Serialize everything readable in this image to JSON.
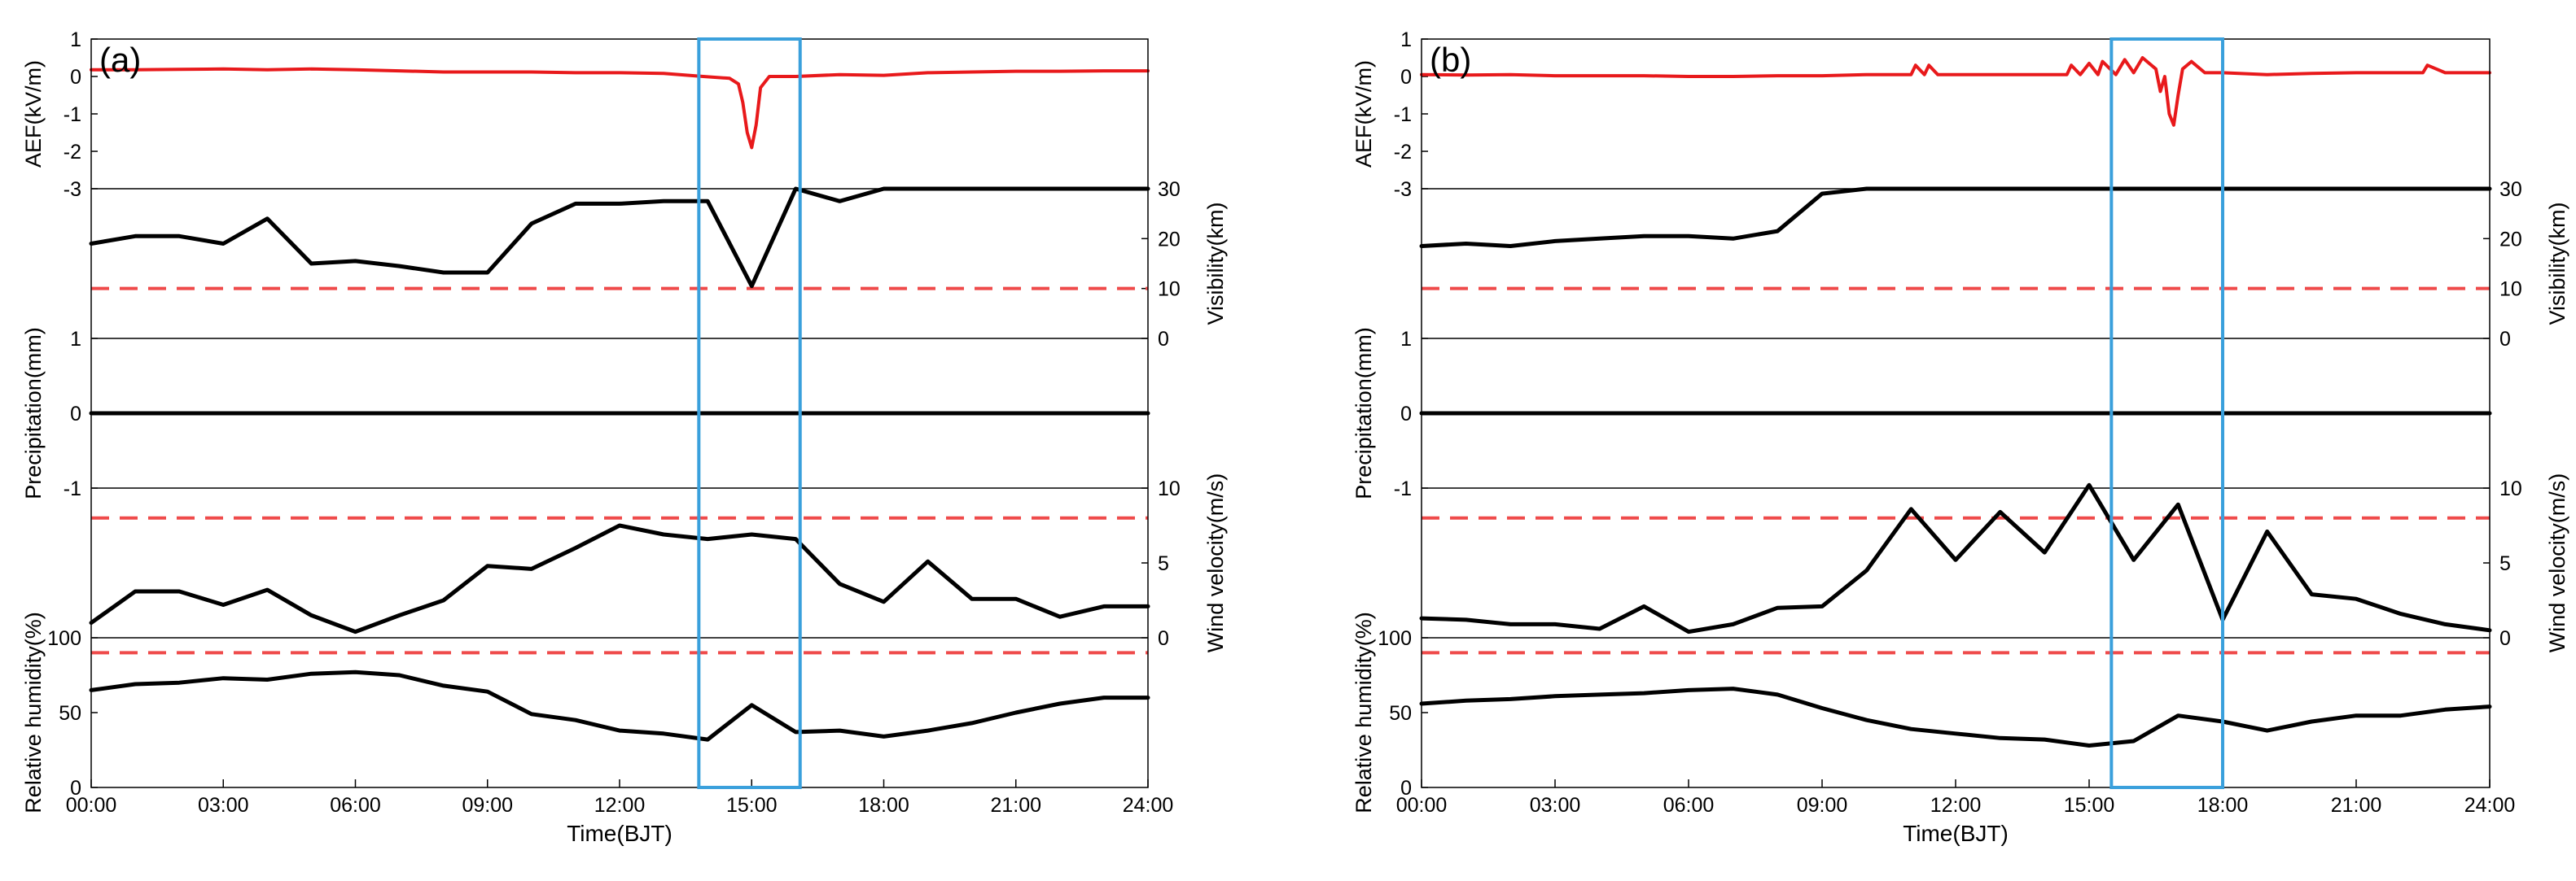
{
  "figure": {
    "xlabel": "Time(BJT)",
    "x_ticks": [
      0,
      3,
      6,
      9,
      12,
      15,
      18,
      21,
      24
    ],
    "x_tick_labels": [
      "00:00",
      "03:00",
      "06:00",
      "09:00",
      "12:00",
      "15:00",
      "18:00",
      "21:00",
      "24:00"
    ],
    "axis_labels": {
      "aef": "AEF(kV/m)",
      "visibility": "Visibility(km)",
      "precipitation": "Precipitation(mm)",
      "wind": "Wind velocity(m/s)",
      "humidity": "Relative humidity(%)"
    },
    "colors": {
      "aef": "#e8191b",
      "line": "#000000",
      "threshold": "#ef4a4a",
      "box": "#3aa0dc"
    }
  },
  "chart_data": [
    {
      "type": "line",
      "panel_label": "(a)",
      "title": "",
      "xlabel": "Time(BJT)",
      "xlim": [
        0,
        24
      ],
      "highlight_window_hours": [
        13.8,
        16.1
      ],
      "series": [
        {
          "name": "AEF",
          "unit": "kV/m",
          "ylim": [
            -3,
            1
          ],
          "yticks": [
            1,
            0,
            -1,
            -2,
            -3
          ],
          "x": [
            0,
            1,
            2,
            3,
            4,
            5,
            6,
            7,
            8,
            9,
            10,
            11,
            12,
            13,
            13.9,
            14.5,
            14.7,
            14.8,
            14.9,
            15.0,
            15.1,
            15.2,
            15.4,
            16,
            17,
            18,
            19,
            20,
            21,
            22,
            23,
            24
          ],
          "values": [
            0.18,
            0.18,
            0.19,
            0.2,
            0.18,
            0.2,
            0.18,
            0.15,
            0.12,
            0.12,
            0.12,
            0.1,
            0.1,
            0.08,
            0.0,
            -0.05,
            -0.2,
            -0.7,
            -1.5,
            -1.9,
            -1.3,
            -0.3,
            0.0,
            0.0,
            0.05,
            0.03,
            0.1,
            0.12,
            0.14,
            0.14,
            0.15,
            0.15
          ]
        },
        {
          "name": "Visibility",
          "unit": "km",
          "ylim": [
            0,
            30
          ],
          "yticks": [
            30,
            20,
            10,
            0
          ],
          "threshold": 10,
          "x": [
            0,
            1,
            2,
            3,
            4,
            5,
            6,
            7,
            8,
            9,
            10,
            11,
            12,
            13,
            14,
            15,
            16,
            17,
            18,
            19,
            20,
            21,
            22,
            23,
            24
          ],
          "values": [
            19,
            20.5,
            20.5,
            19,
            24,
            15,
            15.5,
            14.5,
            13.2,
            13.2,
            23,
            27,
            27,
            27.5,
            27.5,
            10.5,
            30,
            27.5,
            30,
            30,
            30,
            30,
            30,
            30,
            30
          ]
        },
        {
          "name": "Precipitation",
          "unit": "mm",
          "ylim": [
            -1,
            1
          ],
          "yticks": [
            1,
            0,
            -1
          ],
          "x": [
            0,
            24
          ],
          "values": [
            0,
            0
          ]
        },
        {
          "name": "Wind velocity",
          "unit": "m/s",
          "ylim": [
            0,
            10
          ],
          "yticks": [
            10,
            5,
            0
          ],
          "threshold": 8,
          "x": [
            0,
            1,
            2,
            3,
            4,
            5,
            6,
            7,
            8,
            9,
            10,
            11,
            12,
            13,
            14,
            15,
            16,
            17,
            18,
            19,
            20,
            21,
            22,
            23,
            24
          ],
          "values": [
            1,
            3.1,
            3.1,
            2.2,
            3.2,
            1.5,
            0.4,
            1.5,
            2.5,
            4.8,
            4.6,
            6,
            7.5,
            6.9,
            6.6,
            6.9,
            6.6,
            3.6,
            2.4,
            5.1,
            2.6,
            2.6,
            1.4,
            2.1,
            2.1
          ]
        },
        {
          "name": "Relative humidity",
          "unit": "%",
          "ylim": [
            0,
            100
          ],
          "yticks": [
            100,
            50,
            0
          ],
          "threshold": 90,
          "x": [
            0,
            1,
            2,
            3,
            4,
            5,
            6,
            7,
            8,
            9,
            10,
            11,
            12,
            13,
            14,
            15,
            16,
            17,
            18,
            19,
            20,
            21,
            22,
            23,
            24
          ],
          "values": [
            65,
            69,
            70,
            73,
            72,
            76,
            77,
            75,
            68,
            64,
            49,
            45,
            38,
            36,
            32,
            55,
            37,
            38,
            34,
            38,
            43,
            50,
            56,
            60,
            60
          ]
        }
      ]
    },
    {
      "type": "line",
      "panel_label": "(b)",
      "title": "",
      "xlabel": "Time(BJT)",
      "xlim": [
        0,
        24
      ],
      "highlight_window_hours": [
        15.5,
        18.0
      ],
      "series": [
        {
          "name": "AEF",
          "unit": "kV/m",
          "ylim": [
            -3,
            1
          ],
          "yticks": [
            1,
            0,
            -1,
            -2,
            -3
          ],
          "x": [
            0,
            1,
            2,
            3,
            4,
            5,
            6,
            7,
            8,
            9,
            10,
            10.5,
            11,
            11.1,
            11.3,
            11.4,
            11.6,
            12,
            13,
            14,
            14.5,
            14.6,
            14.8,
            15,
            15.2,
            15.3,
            15.6,
            15.8,
            16,
            16.2,
            16.5,
            16.6,
            16.7,
            16.8,
            16.9,
            17.0,
            17.1,
            17.3,
            17.6,
            18,
            19,
            20,
            21,
            22,
            22.5,
            22.6,
            23,
            24
          ],
          "values": [
            0.05,
            0.04,
            0.05,
            0.02,
            0.02,
            0.02,
            0.0,
            0.0,
            0.02,
            0.02,
            0.05,
            0.05,
            0.05,
            0.3,
            0.05,
            0.3,
            0.05,
            0.05,
            0.05,
            0.05,
            0.05,
            0.3,
            0.05,
            0.35,
            0.05,
            0.4,
            0.05,
            0.45,
            0.1,
            0.5,
            0.2,
            -0.4,
            0.0,
            -1.0,
            -1.3,
            -0.5,
            0.2,
            0.4,
            0.1,
            0.1,
            0.05,
            0.08,
            0.1,
            0.1,
            0.1,
            0.3,
            0.1,
            0.1
          ]
        },
        {
          "name": "Visibility",
          "unit": "km",
          "ylim": [
            0,
            30
          ],
          "yticks": [
            30,
            20,
            10,
            0
          ],
          "threshold": 10,
          "x": [
            0,
            1,
            2,
            3,
            4,
            5,
            6,
            7,
            8,
            9,
            10,
            11,
            12,
            13,
            14,
            15,
            16,
            17,
            18,
            19,
            20,
            21,
            22,
            23,
            24
          ],
          "values": [
            18.5,
            19,
            18.5,
            19.5,
            20,
            20.5,
            20.5,
            20,
            21.5,
            29,
            30,
            30,
            30,
            30,
            30,
            30,
            30,
            30,
            30,
            30,
            30,
            30,
            30,
            30,
            30
          ]
        },
        {
          "name": "Precipitation",
          "unit": "mm",
          "ylim": [
            -1,
            1
          ],
          "yticks": [
            1,
            0,
            -1
          ],
          "x": [
            0,
            24
          ],
          "values": [
            0,
            0
          ]
        },
        {
          "name": "Wind velocity",
          "unit": "m/s",
          "ylim": [
            0,
            10
          ],
          "yticks": [
            10,
            5,
            0
          ],
          "threshold": 8,
          "x": [
            0,
            1,
            2,
            3,
            4,
            5,
            6,
            7,
            8,
            9,
            10,
            11,
            12,
            13,
            14,
            15,
            16,
            17,
            18,
            19,
            20,
            21,
            22,
            23,
            24
          ],
          "values": [
            1.3,
            1.2,
            0.9,
            0.9,
            0.6,
            2.1,
            0.4,
            0.9,
            2.0,
            2.1,
            4.5,
            8.6,
            5.2,
            8.4,
            5.7,
            10.2,
            5.2,
            8.9,
            1.2,
            7.1,
            2.9,
            2.6,
            1.6,
            0.9,
            0.5
          ]
        },
        {
          "name": "Relative humidity",
          "unit": "%",
          "ylim": [
            0,
            100
          ],
          "yticks": [
            100,
            50,
            0
          ],
          "threshold": 90,
          "x": [
            0,
            1,
            2,
            3,
            4,
            5,
            6,
            7,
            8,
            9,
            10,
            11,
            12,
            13,
            14,
            15,
            16,
            17,
            18,
            19,
            20,
            21,
            22,
            23,
            24
          ],
          "values": [
            56,
            58,
            59,
            61,
            62,
            63,
            65,
            66,
            62,
            53,
            45,
            39,
            36,
            33,
            32,
            28,
            31,
            48,
            44,
            38,
            44,
            48,
            48,
            52,
            54
          ]
        }
      ]
    }
  ]
}
